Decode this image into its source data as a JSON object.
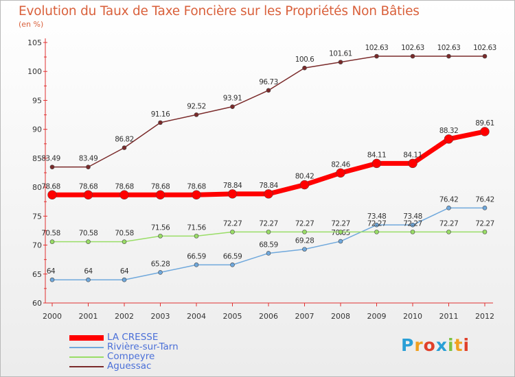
{
  "header": {
    "title": "Evolution du Taux de Taxe Foncière sur les Propriétés Non Bâties",
    "unit": "(en %)"
  },
  "logo": {
    "letters": [
      "P",
      "r",
      "o",
      "x",
      "i",
      "t",
      "i"
    ],
    "colors": [
      "#2a9fd6",
      "#f0a020",
      "#e0402a",
      "#2a9fd6",
      "#7cc242",
      "#f0a020",
      "#e0402a"
    ]
  },
  "chart_data": {
    "type": "line",
    "title": "Evolution du Taux de Taxe Foncière sur les Propriétés Non Bâties",
    "ylabel": "(en %)",
    "xlabel": "",
    "ylim": [
      60,
      105
    ],
    "yticks": [
      60,
      65,
      70,
      75,
      80,
      85,
      90,
      95,
      100,
      105
    ],
    "grid": false,
    "legend": "bottom-left",
    "x": [
      "2000",
      "2001",
      "2002",
      "2003",
      "2004",
      "2005",
      "2006",
      "2007",
      "2008",
      "2009",
      "2010",
      "2011",
      "2012"
    ],
    "series": [
      {
        "name": "LA CRESSE",
        "color": "#ff0000",
        "thick": true,
        "values": [
          78.68,
          78.68,
          78.68,
          78.68,
          78.68,
          78.84,
          78.84,
          80.42,
          82.46,
          84.11,
          84.11,
          88.32,
          89.61
        ]
      },
      {
        "name": "Rivière-sur-Tarn",
        "color": "#6fa8dc",
        "thick": false,
        "values": [
          64,
          64,
          64,
          65.28,
          66.59,
          66.59,
          68.59,
          69.28,
          70.65,
          73.48,
          73.48,
          76.42,
          76.42
        ]
      },
      {
        "name": "Compeyre",
        "color": "#99dd66",
        "thick": false,
        "values": [
          70.58,
          70.58,
          70.58,
          71.56,
          71.56,
          72.27,
          72.27,
          72.27,
          72.27,
          72.27,
          72.27,
          72.27,
          72.27
        ]
      },
      {
        "name": "Aguessac",
        "color": "#7a2a2a",
        "thick": false,
        "values": [
          83.49,
          83.49,
          86.82,
          91.16,
          92.52,
          93.91,
          96.73,
          100.6,
          101.61,
          102.63,
          102.63,
          102.63,
          102.63
        ]
      }
    ]
  }
}
